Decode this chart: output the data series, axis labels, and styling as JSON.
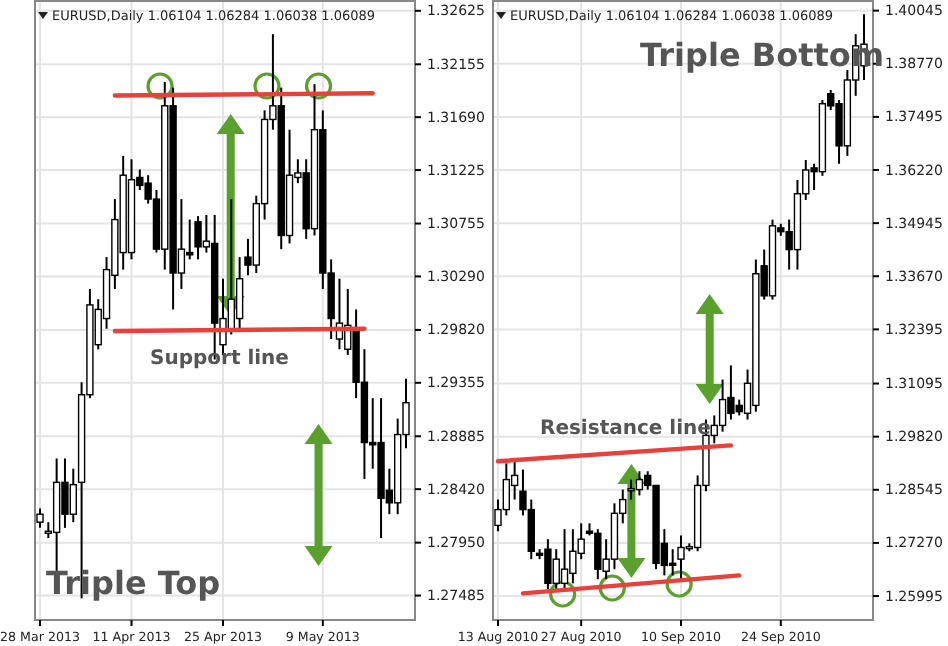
{
  "chart_data": [
    {
      "type": "candlestick",
      "categories": [
        "28 Mar 2013",
        null,
        null,
        null,
        null,
        null,
        null,
        null,
        null,
        null,
        null,
        "11 Apr 2013",
        null,
        null,
        null,
        null,
        null,
        null,
        null,
        null,
        null,
        null,
        "25 Apr 2013",
        null,
        null,
        null,
        null,
        null,
        null,
        null,
        null,
        null,
        null,
        null,
        "9 May 2013",
        null,
        null,
        null,
        null,
        null,
        null,
        null,
        null,
        null,
        null
      ],
      "ohlc": [
        [
          1.2813,
          1.2825,
          1.2808,
          1.282
        ],
        [
          1.2804,
          1.2813,
          1.2799,
          1.2805
        ],
        [
          1.2804,
          1.2869,
          1.2769,
          1.2848
        ],
        [
          1.2848,
          1.2869,
          1.2808,
          1.282
        ],
        [
          1.282,
          1.286,
          1.2813,
          1.2846
        ],
        [
          1.2848,
          1.2936,
          1.2746,
          1.2925
        ],
        [
          1.2925,
          1.3018,
          1.2922,
          1.3004
        ],
        [
          1.2969,
          1.3009,
          1.2965,
          1.3
        ],
        [
          1.2992,
          1.3046,
          1.2983,
          1.3035
        ],
        [
          1.303,
          1.3097,
          1.3018,
          1.3079
        ],
        [
          1.305,
          1.3135,
          1.3035,
          1.3118
        ],
        [
          1.305,
          1.3132,
          1.3044,
          1.3114
        ],
        [
          1.3116,
          1.3123,
          1.3105,
          1.3109
        ],
        [
          1.3111,
          1.3118,
          1.3093,
          1.3097
        ],
        [
          1.3097,
          1.3105,
          1.305,
          1.3053
        ],
        [
          1.3053,
          1.32,
          1.3035,
          1.3179
        ],
        [
          1.3179,
          1.3195,
          1.3,
          1.3032
        ],
        [
          1.3032,
          1.3097,
          1.3018,
          1.3053
        ],
        [
          1.305,
          1.3079,
          1.3044,
          1.3048
        ],
        [
          1.3077,
          1.3082,
          1.3044,
          1.3055
        ],
        [
          1.3055,
          1.3083,
          1.305,
          1.306
        ],
        [
          1.3058,
          1.3083,
          1.2956,
          1.2988
        ],
        [
          1.2969,
          1.3027,
          1.296,
          1.2992
        ],
        [
          1.2983,
          1.3097,
          1.2978,
          1.3009
        ],
        [
          1.2992,
          1.3046,
          1.2983,
          1.3027
        ],
        [
          1.3046,
          1.3062,
          1.303,
          1.3039
        ],
        [
          1.3039,
          1.31,
          1.3032,
          1.3093
        ],
        [
          1.3093,
          1.3175,
          1.3079,
          1.3167
        ],
        [
          1.3167,
          1.3242,
          1.3158,
          1.3179
        ],
        [
          1.3179,
          1.3195,
          1.3053,
          1.3065
        ],
        [
          1.3065,
          1.3158,
          1.3058,
          1.3118
        ],
        [
          1.3116,
          1.3132,
          1.3111,
          1.312
        ],
        [
          1.312,
          1.3132,
          1.3062,
          1.3071
        ],
        [
          1.3071,
          1.3198,
          1.3065,
          1.3158
        ],
        [
          1.3158,
          1.3175,
          1.3018,
          1.3032
        ],
        [
          1.3032,
          1.3044,
          1.2974,
          1.2992
        ],
        [
          1.2974,
          1.3027,
          1.2965,
          1.2988
        ],
        [
          1.2965,
          1.3018,
          1.296,
          1.2986
        ],
        [
          1.2983,
          1.3,
          1.2922,
          1.2936
        ],
        [
          1.2936,
          1.2965,
          1.2851,
          1.2883
        ],
        [
          1.2883,
          1.2922,
          1.286,
          1.2881
        ],
        [
          1.2883,
          1.2922,
          1.2799,
          1.2834
        ],
        [
          1.2841,
          1.286,
          1.282,
          1.283
        ],
        [
          1.283,
          1.2904,
          1.282,
          1.289
        ],
        [
          1.289,
          1.2939,
          1.2878,
          1.2918
        ]
      ],
      "series": [
        {
          "type": "line",
          "color": "#e8413c",
          "values": [
            null,
            null,
            null,
            null,
            null,
            null,
            null,
            null,
            null,
            1.3188,
            null,
            null,
            null,
            null,
            null,
            null,
            null,
            null,
            null,
            null,
            null,
            null,
            null,
            null,
            null,
            null,
            null,
            null,
            null,
            null,
            null,
            null,
            null,
            null,
            null,
            null,
            null,
            null,
            null,
            null,
            1.319,
            null,
            null,
            null,
            null
          ]
        },
        {
          "type": "line",
          "color": "#e8413c",
          "values": [
            null,
            null,
            null,
            null,
            null,
            null,
            null,
            null,
            null,
            1.2981,
            null,
            null,
            null,
            null,
            null,
            null,
            null,
            null,
            null,
            null,
            null,
            null,
            null,
            null,
            null,
            null,
            null,
            null,
            null,
            null,
            null,
            null,
            null,
            null,
            null,
            null,
            null,
            null,
            null,
            1.2983,
            null,
            null,
            null,
            null,
            null
          ]
        }
      ],
      "ylim": [
        1.2727,
        1.3272
      ],
      "yticks": [
        1.32625,
        1.32155,
        {
          "value": 1.3169,
          "label": "1.31690"
        },
        1.31225,
        1.30755,
        {
          "value": 1.3029,
          "label": "1.30290"
        },
        {
          "value": 1.2982,
          "label": "1.29820"
        },
        1.29355,
        1.28885,
        {
          "value": 1.2842,
          "label": "1.28420"
        },
        {
          "value": 1.2795,
          "label": "1.27950"
        },
        1.27485
      ],
      "grid": true,
      "annotations": [
        "EURUSD,Daily  1.06104 1.06284 1.06038 1.06089",
        "Triple Top",
        "Support line"
      ]
    },
    {
      "type": "candlestick",
      "categories": [
        "13 Aug 2010",
        null,
        null,
        null,
        null,
        null,
        null,
        null,
        null,
        null,
        "27 Aug 2010",
        null,
        null,
        null,
        null,
        null,
        null,
        null,
        null,
        null,
        null,
        null,
        "10 Sep 2010",
        null,
        null,
        null,
        null,
        null,
        null,
        null,
        null,
        null,
        null,
        null,
        "24 Sep 2010",
        null,
        null,
        null,
        null,
        null,
        null,
        null,
        null,
        null,
        null
      ],
      "ohlc": [
        [
          1.2769,
          1.2831,
          1.2755,
          1.2807
        ],
        [
          1.2807,
          1.2918,
          1.2793,
          1.2879
        ],
        [
          1.2865,
          1.2927,
          1.2831,
          1.2889
        ],
        [
          1.2851,
          1.2903,
          1.2793,
          1.2807
        ],
        [
          1.2807,
          1.2831,
          1.2688,
          1.2707
        ],
        [
          1.2702,
          1.2712,
          1.2688,
          1.27
        ],
        [
          1.2712,
          1.2736,
          1.2616,
          1.263
        ],
        [
          1.263,
          1.2712,
          1.2616,
          1.2688
        ],
        [
          1.263,
          1.276,
          1.2616,
          1.2664
        ],
        [
          1.2654,
          1.276,
          1.263,
          1.2707
        ],
        [
          1.2702,
          1.2774,
          1.2688,
          1.2736
        ],
        [
          1.2755,
          1.2774,
          1.2745,
          1.2753
        ],
        [
          1.275,
          1.276,
          1.264,
          1.2664
        ],
        [
          1.2659,
          1.2736,
          1.264,
          1.2688
        ],
        [
          1.2688,
          1.2822,
          1.2664,
          1.2798
        ],
        [
          1.2798,
          1.2855,
          1.2774,
          1.2831
        ],
        [
          1.2855,
          1.2879,
          1.2831,
          1.2857
        ],
        [
          1.2855,
          1.2899,
          1.2841,
          1.2879
        ],
        [
          1.2889,
          1.2899,
          1.2855,
          1.2865
        ],
        [
          1.2865,
          1.2865,
          1.2664,
          1.2678
        ],
        [
          1.2726,
          1.276,
          1.2649,
          1.2673
        ],
        [
          1.2678,
          1.2712,
          1.2649,
          1.2676
        ],
        [
          1.2688,
          1.2745,
          1.264,
          1.2716
        ],
        [
          1.2716,
          1.2726,
          1.2707,
          1.2718
        ],
        [
          1.2716,
          1.2889,
          1.2707,
          1.2865
        ],
        [
          1.2865,
          1.3023,
          1.2851,
          1.2985
        ],
        [
          1.2985,
          1.3033,
          1.2966,
          1.3009
        ],
        [
          1.3009,
          1.3119,
          1.2994,
          1.3071
        ],
        [
          1.3076,
          1.3153,
          1.3023,
          1.3038
        ],
        [
          1.3057,
          1.3071,
          1.3033,
          1.3042
        ],
        [
          1.3038,
          1.3143,
          1.3023,
          1.311
        ],
        [
          1.3057,
          1.3407,
          1.3042,
          1.3373
        ],
        [
          1.3392,
          1.3431,
          1.3311,
          1.332
        ],
        [
          1.332,
          1.3503,
          1.3311,
          1.3488
        ],
        [
          1.3483,
          1.3493,
          1.3464,
          1.3474
        ],
        [
          1.3474,
          1.3503,
          1.3383,
          1.3431
        ],
        [
          1.3431,
          1.3598,
          1.3383,
          1.3565
        ],
        [
          1.3565,
          1.3646,
          1.355,
          1.3622
        ],
        [
          1.3627,
          1.3637,
          1.3574,
          1.3618
        ],
        [
          1.3618,
          1.379,
          1.3608,
          1.3781
        ],
        [
          1.3805,
          1.3814,
          1.3766,
          1.3776
        ],
        [
          1.3781,
          1.379,
          1.3637,
          1.368
        ],
        [
          1.368,
          1.3862,
          1.3656,
          1.3838
        ],
        [
          1.3838,
          1.3948,
          1.38,
          1.392
        ],
        [
          1.3872,
          1.3996,
          1.3838,
          1.3924
        ]
      ],
      "series": [
        {
          "type": "line",
          "color": "#e8413c",
          "values": [
            1.2923,
            null,
            null,
            null,
            null,
            null,
            null,
            null,
            null,
            null,
            null,
            null,
            null,
            null,
            null,
            null,
            null,
            null,
            null,
            null,
            null,
            null,
            null,
            null,
            null,
            null,
            null,
            null,
            1.2961,
            null,
            null,
            null,
            null,
            null,
            null,
            null,
            null,
            null,
            null,
            null,
            null,
            null,
            null,
            null,
            null
          ]
        },
        {
          "type": "line",
          "color": "#e8413c",
          "values": [
            null,
            null,
            null,
            1.2606,
            null,
            null,
            null,
            null,
            null,
            null,
            null,
            null,
            null,
            null,
            null,
            null,
            null,
            null,
            null,
            null,
            null,
            null,
            null,
            null,
            null,
            null,
            null,
            null,
            null,
            1.2649,
            null,
            null,
            null,
            null,
            null,
            null,
            null,
            null,
            null,
            null,
            null,
            null,
            null,
            null,
            null
          ]
        }
      ],
      "ylim": [
        1.2542,
        1.403
      ],
      "yticks": [
        1.40045,
        {
          "value": 1.3877,
          "label": "1.38770"
        },
        1.37495,
        {
          "value": 1.3622,
          "label": "1.36220"
        },
        1.34945,
        {
          "value": 1.3367,
          "label": "1.33670"
        },
        1.32395,
        1.31095,
        {
          "value": 1.2982,
          "label": "1.29820"
        },
        1.28545,
        {
          "value": 1.2727,
          "label": "1.27270"
        },
        1.25995
      ],
      "grid": true,
      "annotations": [
        "EURUSD,Daily  1.06104 1.06284 1.06038 1.06089",
        "Triple Bottom",
        "Resistance line"
      ]
    }
  ]
}
